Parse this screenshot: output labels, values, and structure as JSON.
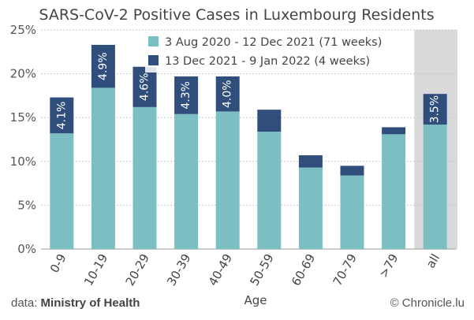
{
  "chart_data": {
    "type": "bar",
    "stacked": true,
    "title": "SARS-CoV-2 Positive Cases in Luxembourg Residents",
    "xlabel": "Age",
    "ylabel": "",
    "ylim": [
      0,
      25
    ],
    "yticks": [
      "0%",
      "5%",
      "10%",
      "15%",
      "20%",
      "25%"
    ],
    "grid": true,
    "legend_position": "top-right",
    "categories": [
      "0-9",
      "10-19",
      "20-29",
      "30-39",
      "40-49",
      "50-59",
      "60-69",
      "70-79",
      ">79",
      "all"
    ],
    "highlighted_category": "all",
    "series": [
      {
        "name": "3 Aug 2020 - 12 Dec 2021 (71 weeks)",
        "color": "#7bbfc3",
        "values": [
          13.2,
          18.4,
          16.2,
          15.4,
          15.7,
          13.4,
          9.3,
          8.4,
          13.1,
          14.2
        ]
      },
      {
        "name": "13 Dec 2021 - 9 Jan 2022 (4 weeks)",
        "color": "#2f4e7c",
        "values": [
          4.1,
          4.9,
          4.6,
          4.3,
          4.0,
          2.5,
          1.4,
          1.1,
          0.8,
          3.5
        ]
      }
    ],
    "bar_labels": [
      "4.1%",
      "4.9%",
      "4.6%",
      "4.3%",
      "4.0%",
      "",
      "",
      "",
      "",
      "3.5%"
    ]
  },
  "footer": {
    "source_prefix": "data:",
    "source_name": "Ministry of Health",
    "credit": "© Chronicle.lu"
  }
}
